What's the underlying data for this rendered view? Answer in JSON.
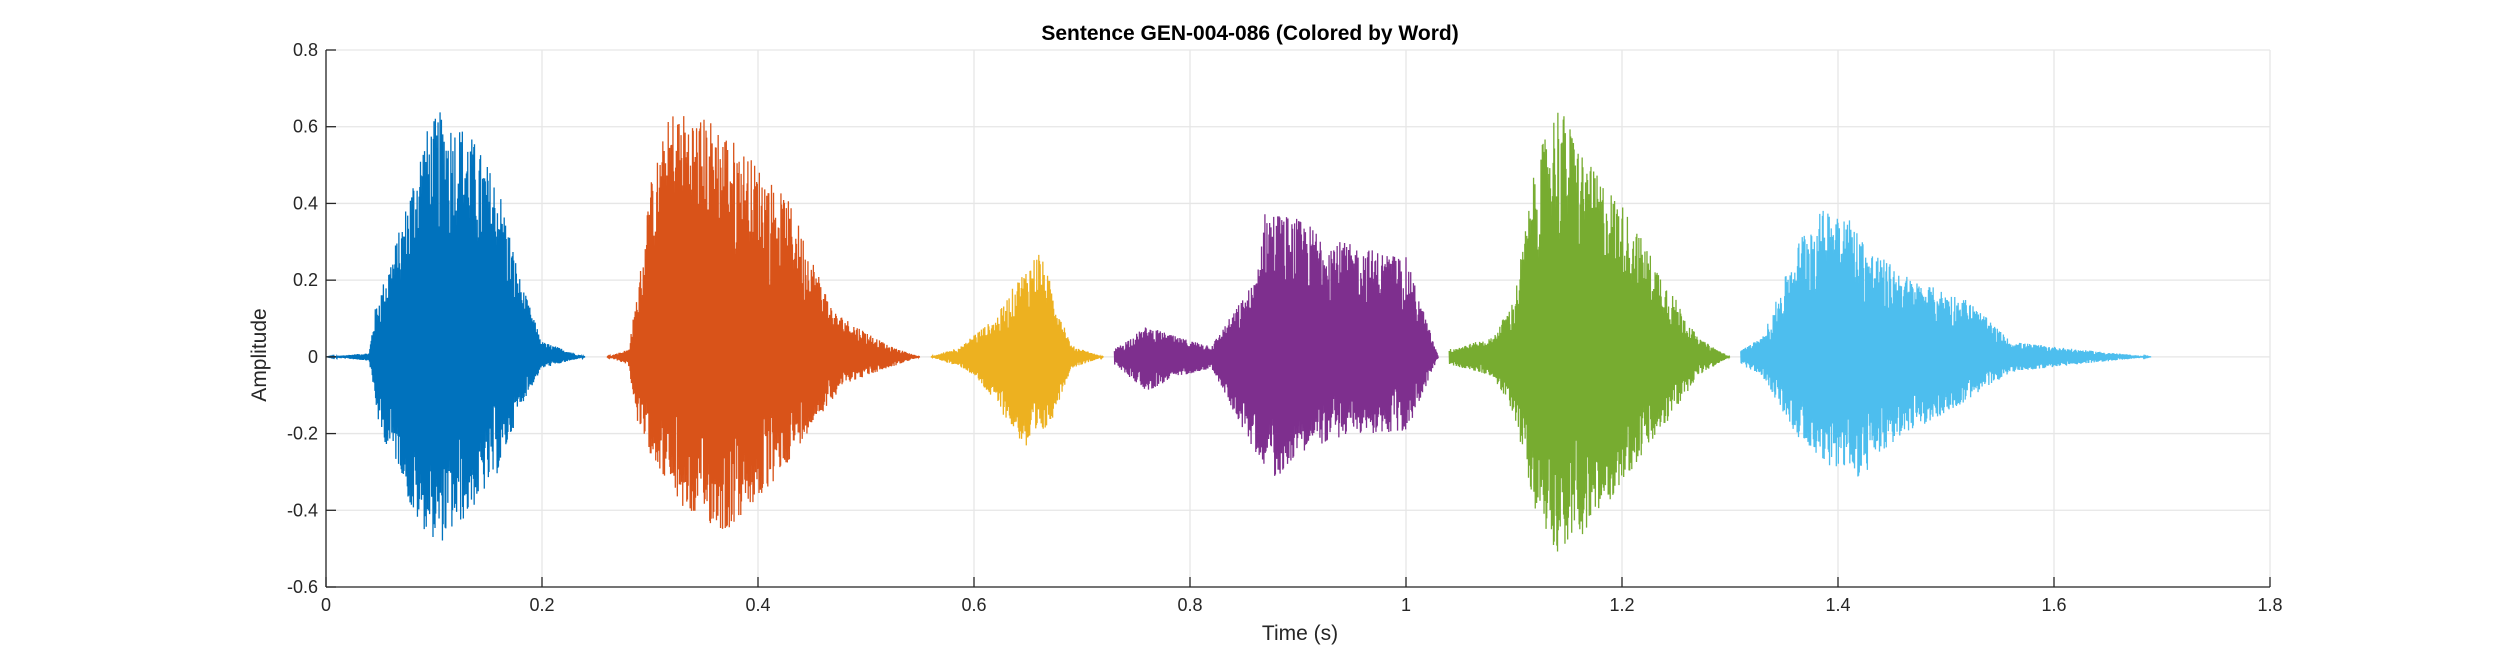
{
  "chart_data": {
    "type": "line",
    "title": "Sentence GEN-004-086 (Colored by Word)",
    "xlabel": "Time (s)",
    "ylabel": "Amplitude",
    "xlim": [
      0,
      1.8
    ],
    "ylim": [
      -0.6,
      0.8
    ],
    "grid": true,
    "legend": "none",
    "xticks": [
      0,
      0.2,
      0.4,
      0.6,
      0.8,
      1,
      1.2,
      1.4,
      1.6,
      1.8
    ],
    "xtick_labels": [
      "0",
      "0.2",
      "0.4",
      "0.6",
      "0.8",
      "1",
      "1.2",
      "1.4",
      "1.6",
      "1.8"
    ],
    "yticks": [
      -0.6,
      -0.4,
      -0.2,
      0,
      0.2,
      0.4,
      0.6,
      0.8
    ],
    "ytick_labels": [
      "-0.6",
      "-0.4",
      "-0.2",
      "0",
      "0.2",
      "0.4",
      "0.6",
      "0.8"
    ],
    "series": [
      {
        "color": "#0072BD",
        "start": 0.0,
        "end": 0.24,
        "env": [
          [
            0,
            0.0
          ],
          [
            0.04,
            0.01
          ],
          [
            0.045,
            0.12
          ],
          [
            0.07,
            0.35
          ],
          [
            0.09,
            0.58
          ],
          [
            0.105,
            0.64
          ],
          [
            0.13,
            0.6
          ],
          [
            0.16,
            0.45
          ],
          [
            0.18,
            0.2
          ],
          [
            0.2,
            0.04
          ],
          [
            0.24,
            0.0
          ]
        ],
        "neg": [
          [
            0,
            0.0
          ],
          [
            0.04,
            -0.01
          ],
          [
            0.05,
            -0.2
          ],
          [
            0.07,
            -0.3
          ],
          [
            0.08,
            -0.42
          ],
          [
            0.105,
            -0.49
          ],
          [
            0.13,
            -0.42
          ],
          [
            0.16,
            -0.3
          ],
          [
            0.18,
            -0.13
          ],
          [
            0.2,
            -0.03
          ],
          [
            0.24,
            0.0
          ]
        ]
      },
      {
        "color": "#D95319",
        "start": 0.26,
        "end": 0.55,
        "env": [
          [
            0.26,
            0.0
          ],
          [
            0.28,
            0.02
          ],
          [
            0.29,
            0.2
          ],
          [
            0.3,
            0.45
          ],
          [
            0.32,
            0.65
          ],
          [
            0.36,
            0.62
          ],
          [
            0.4,
            0.5
          ],
          [
            0.43,
            0.4
          ],
          [
            0.47,
            0.12
          ],
          [
            0.52,
            0.03
          ],
          [
            0.55,
            0.0
          ]
        ],
        "neg": [
          [
            0.26,
            0.0
          ],
          [
            0.28,
            -0.02
          ],
          [
            0.29,
            -0.2
          ],
          [
            0.31,
            -0.3
          ],
          [
            0.33,
            -0.4
          ],
          [
            0.37,
            -0.46
          ],
          [
            0.41,
            -0.35
          ],
          [
            0.45,
            -0.18
          ],
          [
            0.48,
            -0.07
          ],
          [
            0.52,
            -0.03
          ],
          [
            0.55,
            0.0
          ]
        ]
      },
      {
        "color": "#EDB120",
        "start": 0.56,
        "end": 0.72,
        "env": [
          [
            0.56,
            0.0
          ],
          [
            0.59,
            0.03
          ],
          [
            0.6,
            0.06
          ],
          [
            0.62,
            0.1
          ],
          [
            0.64,
            0.2
          ],
          [
            0.66,
            0.28
          ],
          [
            0.67,
            0.2
          ],
          [
            0.69,
            0.03
          ],
          [
            0.72,
            0.0
          ]
        ],
        "neg": [
          [
            0.56,
            0.0
          ],
          [
            0.59,
            -0.03
          ],
          [
            0.6,
            -0.05
          ],
          [
            0.62,
            -0.12
          ],
          [
            0.65,
            -0.25
          ],
          [
            0.67,
            -0.18
          ],
          [
            0.69,
            -0.03
          ],
          [
            0.72,
            0.0
          ]
        ]
      },
      {
        "color": "#7E2F8E",
        "start": 0.73,
        "end": 1.03,
        "env": [
          [
            0.73,
            0.02
          ],
          [
            0.76,
            0.08
          ],
          [
            0.79,
            0.05
          ],
          [
            0.82,
            0.03
          ],
          [
            0.86,
            0.2
          ],
          [
            0.87,
            0.39
          ],
          [
            0.9,
            0.36
          ],
          [
            0.94,
            0.3
          ],
          [
            1.0,
            0.26
          ],
          [
            1.03,
            0.0
          ]
        ],
        "neg": [
          [
            0.73,
            -0.02
          ],
          [
            0.76,
            -0.09
          ],
          [
            0.79,
            -0.05
          ],
          [
            0.82,
            -0.03
          ],
          [
            0.86,
            -0.25
          ],
          [
            0.88,
            -0.32
          ],
          [
            0.9,
            -0.25
          ],
          [
            0.95,
            -0.2
          ],
          [
            1.0,
            -0.2
          ],
          [
            1.03,
            0.0
          ]
        ]
      },
      {
        "color": "#77AC30",
        "start": 1.04,
        "end": 1.3,
        "env": [
          [
            1.04,
            0.02
          ],
          [
            1.08,
            0.05
          ],
          [
            1.1,
            0.15
          ],
          [
            1.12,
            0.5
          ],
          [
            1.14,
            0.67
          ],
          [
            1.17,
            0.5
          ],
          [
            1.2,
            0.4
          ],
          [
            1.24,
            0.2
          ],
          [
            1.27,
            0.05
          ],
          [
            1.3,
            0.0
          ]
        ],
        "neg": [
          [
            1.04,
            -0.02
          ],
          [
            1.08,
            -0.05
          ],
          [
            1.1,
            -0.15
          ],
          [
            1.12,
            -0.4
          ],
          [
            1.14,
            -0.51
          ],
          [
            1.17,
            -0.45
          ],
          [
            1.2,
            -0.33
          ],
          [
            1.24,
            -0.18
          ],
          [
            1.27,
            -0.05
          ],
          [
            1.3,
            0.0
          ]
        ]
      },
      {
        "color": "#4DBEEE",
        "start": 1.31,
        "end": 1.69,
        "env": [
          [
            1.31,
            0.02
          ],
          [
            1.33,
            0.05
          ],
          [
            1.35,
            0.2
          ],
          [
            1.37,
            0.35
          ],
          [
            1.4,
            0.41
          ],
          [
            1.43,
            0.28
          ],
          [
            1.47,
            0.2
          ],
          [
            1.52,
            0.15
          ],
          [
            1.56,
            0.04
          ],
          [
            1.62,
            0.02
          ],
          [
            1.69,
            0.0
          ]
        ],
        "neg": [
          [
            1.31,
            -0.02
          ],
          [
            1.33,
            -0.05
          ],
          [
            1.36,
            -0.2
          ],
          [
            1.39,
            -0.28
          ],
          [
            1.42,
            -0.32
          ],
          [
            1.46,
            -0.2
          ],
          [
            1.5,
            -0.15
          ],
          [
            1.56,
            -0.04
          ],
          [
            1.62,
            -0.02
          ],
          [
            1.69,
            0.0
          ]
        ]
      }
    ]
  }
}
